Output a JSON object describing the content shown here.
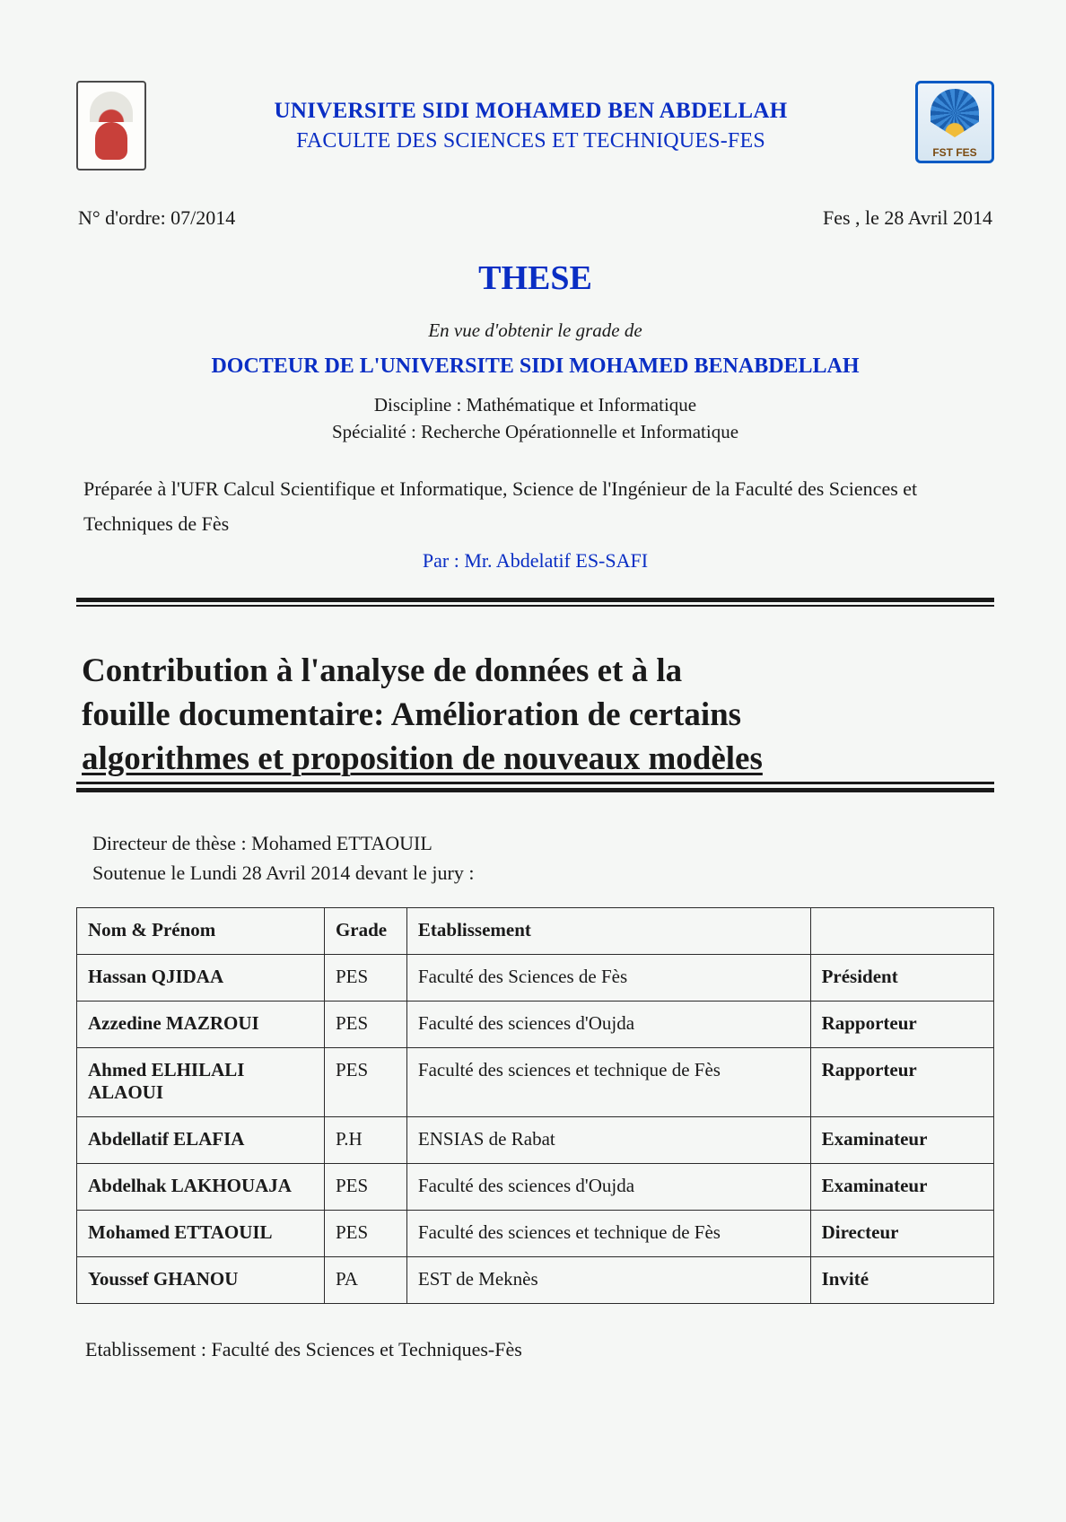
{
  "header": {
    "university": "UNIVERSITE SIDI MOHAMED BEN ABDELLAH",
    "faculty": "FACULTE DES SCIENCES ET TECHNIQUES-FES",
    "right_logo_label": "FST FES"
  },
  "meta": {
    "order_number": "N° d'ordre: 07/2014",
    "place_date": "Fes , le 28 Avril 2014"
  },
  "these": {
    "heading": "THESE",
    "grade_intro": "En vue d'obtenir le grade de",
    "doctor_line": "DOCTEUR DE L'UNIVERSITE SIDI MOHAMED BENABDELLAH",
    "discipline": "Discipline : Mathématique et Informatique",
    "speciality": "Spécialité : Recherche Opérationnelle et Informatique",
    "prepared": "Préparée à l'UFR Calcul Scientifique et Informatique, Science de l'Ingénieur de la Faculté des Sciences et Techniques de Fès",
    "author_label": "Par : Mr. Abdelatif ES-SAFI"
  },
  "title": {
    "line1": "Contribution à l'analyse de données et à la",
    "line2": "fouille documentaire: Amélioration de certains",
    "line3": "algorithmes et proposition de nouveaux modèles"
  },
  "director_block": {
    "line1": "Directeur de thèse : Mohamed ETTAOUIL",
    "line2": "Soutenue le Lundi  28 Avril 2014 devant le jury :"
  },
  "jury": {
    "headers": {
      "name": "Nom & Prénom",
      "grade": "Grade",
      "etablissement": "Etablissement",
      "role": ""
    },
    "rows": [
      {
        "name": "Hassan QJIDAA",
        "grade": "PES",
        "etab": "Faculté des Sciences  de Fès",
        "role": "Président"
      },
      {
        "name": "Azzedine MAZROUI",
        "grade": "PES",
        "etab": "Faculté des sciences d'Oujda",
        "role": "Rapporteur"
      },
      {
        "name": "Ahmed ELHILALI ALAOUI",
        "grade": "PES",
        "etab": "Faculté des sciences et technique de Fès",
        "role": "Rapporteur"
      },
      {
        "name": "Abdellatif ELAFIA",
        "grade": "P.H",
        "etab": "ENSIAS  de Rabat",
        "role": "Examinateur"
      },
      {
        "name": "Abdelhak LAKHOUAJA",
        "grade": "PES",
        "etab": "Faculté des sciences d'Oujda",
        "role": "Examinateur"
      },
      {
        "name": "Mohamed  ETTAOUIL",
        "grade": "PES",
        "etab": "Faculté des sciences et technique de Fès",
        "role": "Directeur"
      },
      {
        "name": "Youssef GHANOU",
        "grade": "PA",
        "etab": "EST de Meknès",
        "role": "Invité"
      }
    ]
  },
  "footer": {
    "etablissement": "Etablissement : Faculté des Sciences et Techniques-Fès"
  },
  "colors": {
    "blue": "#0a2ec4",
    "text": "#1a1a1a",
    "background": "#f5f7f5"
  }
}
